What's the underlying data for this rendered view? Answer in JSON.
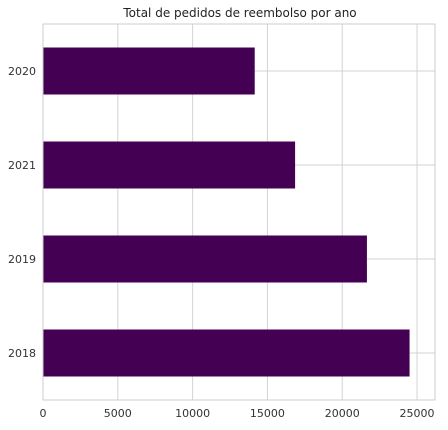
{
  "chart_data": {
    "type": "bar",
    "orientation": "horizontal",
    "title": "Total de pedidos de reembolso por ano",
    "xlabel": "",
    "ylabel": "",
    "categories": [
      "2018",
      "2019",
      "2021",
      "2020"
    ],
    "values": [
      24500,
      21650,
      16850,
      14150
    ],
    "xlim": [
      0,
      26200
    ],
    "xticks": [
      0,
      5000,
      10000,
      15000,
      20000,
      25000
    ],
    "bar_color": "#440154",
    "grid": true,
    "legend": "none"
  }
}
